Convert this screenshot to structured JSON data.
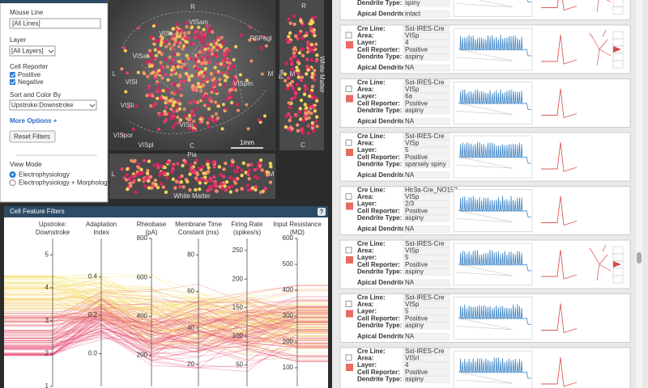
{
  "filters": {
    "mouse_line_label": "Mouse Line",
    "mouse_line_value": "[All Lines]",
    "layer_label": "Layer",
    "layer_value": "[All Layers]",
    "cell_reporter_label": "Cell Reporter",
    "reporters": [
      "Positive",
      "Negative"
    ],
    "sort_label": "Sort and Color By",
    "sort_value": "Upstroke:Downstroke",
    "more_options": "More Options +",
    "reset": "Reset Filters",
    "view_mode_label": "View Mode",
    "view_modes": [
      "Electrophysiology",
      "Electrophysiology + Morphology"
    ]
  },
  "brain_map": {
    "labels": [
      "R",
      "VISa",
      "VISam",
      "RSPagl",
      "VISal",
      "VISl",
      "VISpm",
      "VISli",
      "VISp",
      "VISpor",
      "VISpl",
      "C",
      "L",
      "M"
    ],
    "scale_bar": "1mm",
    "side_labels": [
      "R",
      "M",
      "C"
    ],
    "pia": "Pia",
    "white_matter": "White Matter",
    "slice_labels": [
      "L",
      "M"
    ]
  },
  "feature_filters": {
    "title": "Cell Feature Filters",
    "help": "?",
    "axes": [
      {
        "title": [
          "Upstroke:",
          "Downstroke"
        ],
        "ylim": [
          1,
          5.5
        ],
        "ticks": [
          1,
          2,
          3,
          4,
          5
        ]
      },
      {
        "title": [
          "Adaptation",
          "Index"
        ],
        "ylim": [
          -0.17,
          0.6
        ],
        "ticks": [
          {
            "value": 0,
            "label": "0.0"
          },
          0.2,
          0.4
        ]
      },
      {
        "title": [
          "Rheobase",
          "(pA)"
        ],
        "ylim": [
          40,
          800
        ],
        "ticks": [
          200,
          400,
          600,
          800
        ]
      },
      {
        "title": [
          "Membrane Time",
          "Constant (ms)"
        ],
        "ylim": [
          8,
          89
        ],
        "ticks": [
          20,
          40,
          60,
          80
        ]
      },
      {
        "title": [
          "Firing Rate",
          "(spikes/s)"
        ],
        "ylim": [
          12,
          271
        ],
        "ticks": [
          50,
          100,
          150,
          200,
          250
        ]
      },
      {
        "title": [
          "Input Resistance",
          "(MΩ)"
        ],
        "ylim": [
          28,
          600
        ],
        "ticks": [
          100,
          200,
          300,
          400,
          500,
          600
        ]
      }
    ]
  },
  "cells": {
    "field_labels": [
      "Cre Line:",
      "Area:",
      "Layer:",
      "Cell Reporter:",
      "Dendrite Type:",
      "Apical Dendrite:"
    ],
    "partial_top": [
      "spiny",
      "intact"
    ],
    "cards": [
      {
        "values": [
          "Sst-IRES-Cre",
          "VISp",
          "4",
          "Positive",
          "aspiny",
          "NA"
        ]
      },
      {
        "values": [
          "Sst-IRES-Cre",
          "VISp",
          "6a",
          "Positive",
          "aspiny",
          "NA"
        ]
      },
      {
        "values": [
          "Sst-IRES-Cre",
          "VISp",
          "5",
          "Positive",
          "sparsely spiny",
          "NA"
        ]
      },
      {
        "values": [
          "Htr3a-Cre_NO152",
          "VISp",
          "2/3",
          "Positive",
          "aspiny",
          "NA"
        ]
      },
      {
        "values": [
          "Sst-IRES-Cre",
          "VISp",
          "5",
          "Positive",
          "aspiny",
          "NA"
        ]
      },
      {
        "values": [
          "Sst-IRES-Cre",
          "VISp",
          "5",
          "Positive",
          "aspiny",
          "NA"
        ]
      },
      {
        "values": [
          "Sst-IRES-Cre",
          "VISrl",
          "4",
          "Positive",
          "aspiny"
        ]
      }
    ]
  }
}
